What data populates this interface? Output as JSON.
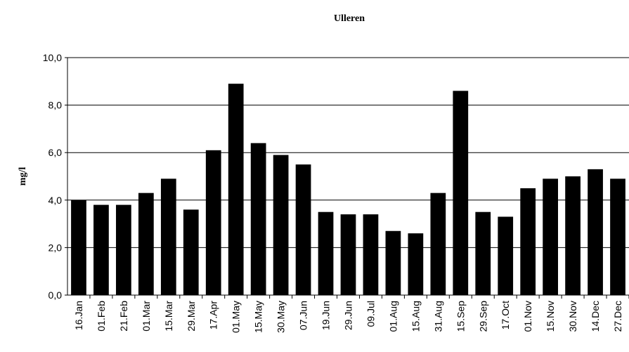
{
  "chart_data": {
    "type": "bar",
    "title": "Ulleren",
    "y_label": "mg/l",
    "categories": [
      "16.Jan",
      "01.Feb",
      "21.Feb",
      "01.Mar",
      "15.Mar",
      "29.Mar",
      "17.Apr",
      "01.May",
      "15.May",
      "30.May",
      "07.Jun",
      "19.Jun",
      "29.Jun",
      "09.Jul",
      "01.Aug",
      "15.Aug",
      "31.Aug",
      "15.Sep",
      "29.Sep",
      "17.Oct",
      "01.Nov",
      "15.Nov",
      "30.Nov",
      "14.Dec",
      "27.Dec"
    ],
    "values": [
      4.0,
      3.8,
      3.8,
      4.3,
      4.9,
      3.6,
      6.1,
      8.9,
      6.4,
      5.9,
      5.5,
      3.5,
      3.4,
      3.4,
      2.7,
      2.6,
      4.3,
      8.6,
      3.5,
      3.3,
      4.5,
      4.9,
      5.0,
      5.3,
      4.9
    ],
    "color": "#000000",
    "ylim": [
      0,
      10
    ],
    "yticks": [
      {
        "value": 0,
        "label": "0,0"
      },
      {
        "value": 2,
        "label": "2,0"
      },
      {
        "value": 4,
        "label": "4,0"
      },
      {
        "value": 6,
        "label": "6,0"
      },
      {
        "value": 8,
        "label": "8,0"
      },
      {
        "value": 10,
        "label": "10,0"
      }
    ],
    "grid": true
  }
}
